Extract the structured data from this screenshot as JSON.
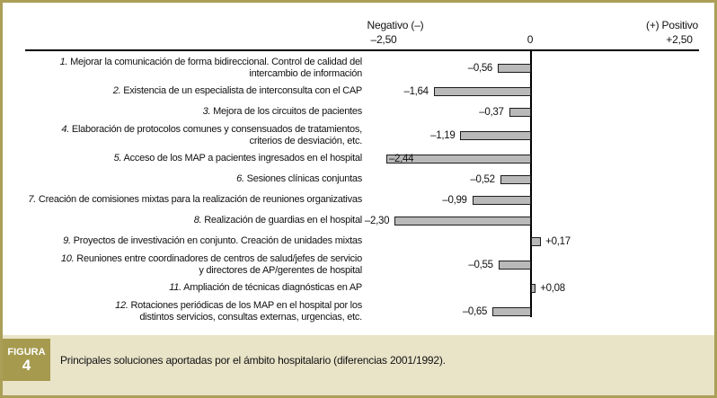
{
  "colors": {
    "frame_tan": "#ab9f58",
    "caption_band": "#e9e3c8",
    "badge_olive": "#a59a4e",
    "bar_fill": "#b9b9b9",
    "bar_border": "#1c1c1c"
  },
  "figure": {
    "badge_line1": "FIGURA",
    "badge_line2": "4",
    "caption": "Principales soluciones aportadas por el ámbito hospitalario (diferencias 2001/1992)."
  },
  "chart_data": {
    "type": "bar",
    "orientation": "horizontal",
    "title": "",
    "xlabel": "",
    "ylabel": "",
    "xlim": [
      -2.5,
      2.5
    ],
    "grid": false,
    "axis_labels": {
      "negative_header": "Negativo (–)",
      "negative_tick": "–2,50",
      "zero_tick": "0",
      "positive_header": "(+) Positivo",
      "positive_tick": "+2,50"
    },
    "items": [
      {
        "num": "1.",
        "label": "Mejorar la comunicación de forma bidireccional. Control de calidad del\nintercambio de información",
        "value": -0.56,
        "value_label": "–0,56",
        "value_position": "outside"
      },
      {
        "num": "2.",
        "label": "Existencia de un especialista de interconsulta con el CAP",
        "value": -1.64,
        "value_label": "–1,64",
        "value_position": "outside"
      },
      {
        "num": "3.",
        "label": "Mejora de los circuitos de pacientes",
        "value": -0.37,
        "value_label": "–0,37",
        "value_position": "outside"
      },
      {
        "num": "4.",
        "label": "Elaboración de protocolos comunes y consensuados de tratamientos,\ncriterios de desviación, etc.",
        "value": -1.19,
        "value_label": "–1,19",
        "value_position": "outside"
      },
      {
        "num": "5.",
        "label": "Acceso de los MAP a pacientes ingresados en el hospital",
        "value": -2.44,
        "value_label": "–2,44",
        "value_position": "inside"
      },
      {
        "num": "6.",
        "label": "Sesiones clínicas conjuntas",
        "value": -0.52,
        "value_label": "–0,52",
        "value_position": "outside"
      },
      {
        "num": "7.",
        "label": "Creación de comisiones mixtas para la realización de reuniones organizativas",
        "value": -0.99,
        "value_label": "–0,99",
        "value_position": "outside"
      },
      {
        "num": "8.",
        "label": "Realización de guardias en el hospital",
        "value": -2.3,
        "value_label": "–2,30",
        "value_position": "outside"
      },
      {
        "num": "9.",
        "label": "Proyectos de investivación en conjunto. Creación de unidades mixtas",
        "value": 0.17,
        "value_label": "+0,17",
        "value_position": "outside"
      },
      {
        "num": "10.",
        "label": "Reuniones entre coordinadores de centros de salud/jefes de servicio\ny directores de AP/gerentes de hospital",
        "value": -0.55,
        "value_label": "–0,55",
        "value_position": "outside"
      },
      {
        "num": "11.",
        "label": "Ampliación de técnicas diagnósticas en AP",
        "value": 0.08,
        "value_label": "+0,08",
        "value_position": "outside"
      },
      {
        "num": "12.",
        "label": "Rotaciones periódicas de los MAP en el hospital por los\ndistintos servicios, consultas externas, urgencias, etc.",
        "value": -0.65,
        "value_label": "–0,65",
        "value_position": "outside"
      }
    ]
  }
}
